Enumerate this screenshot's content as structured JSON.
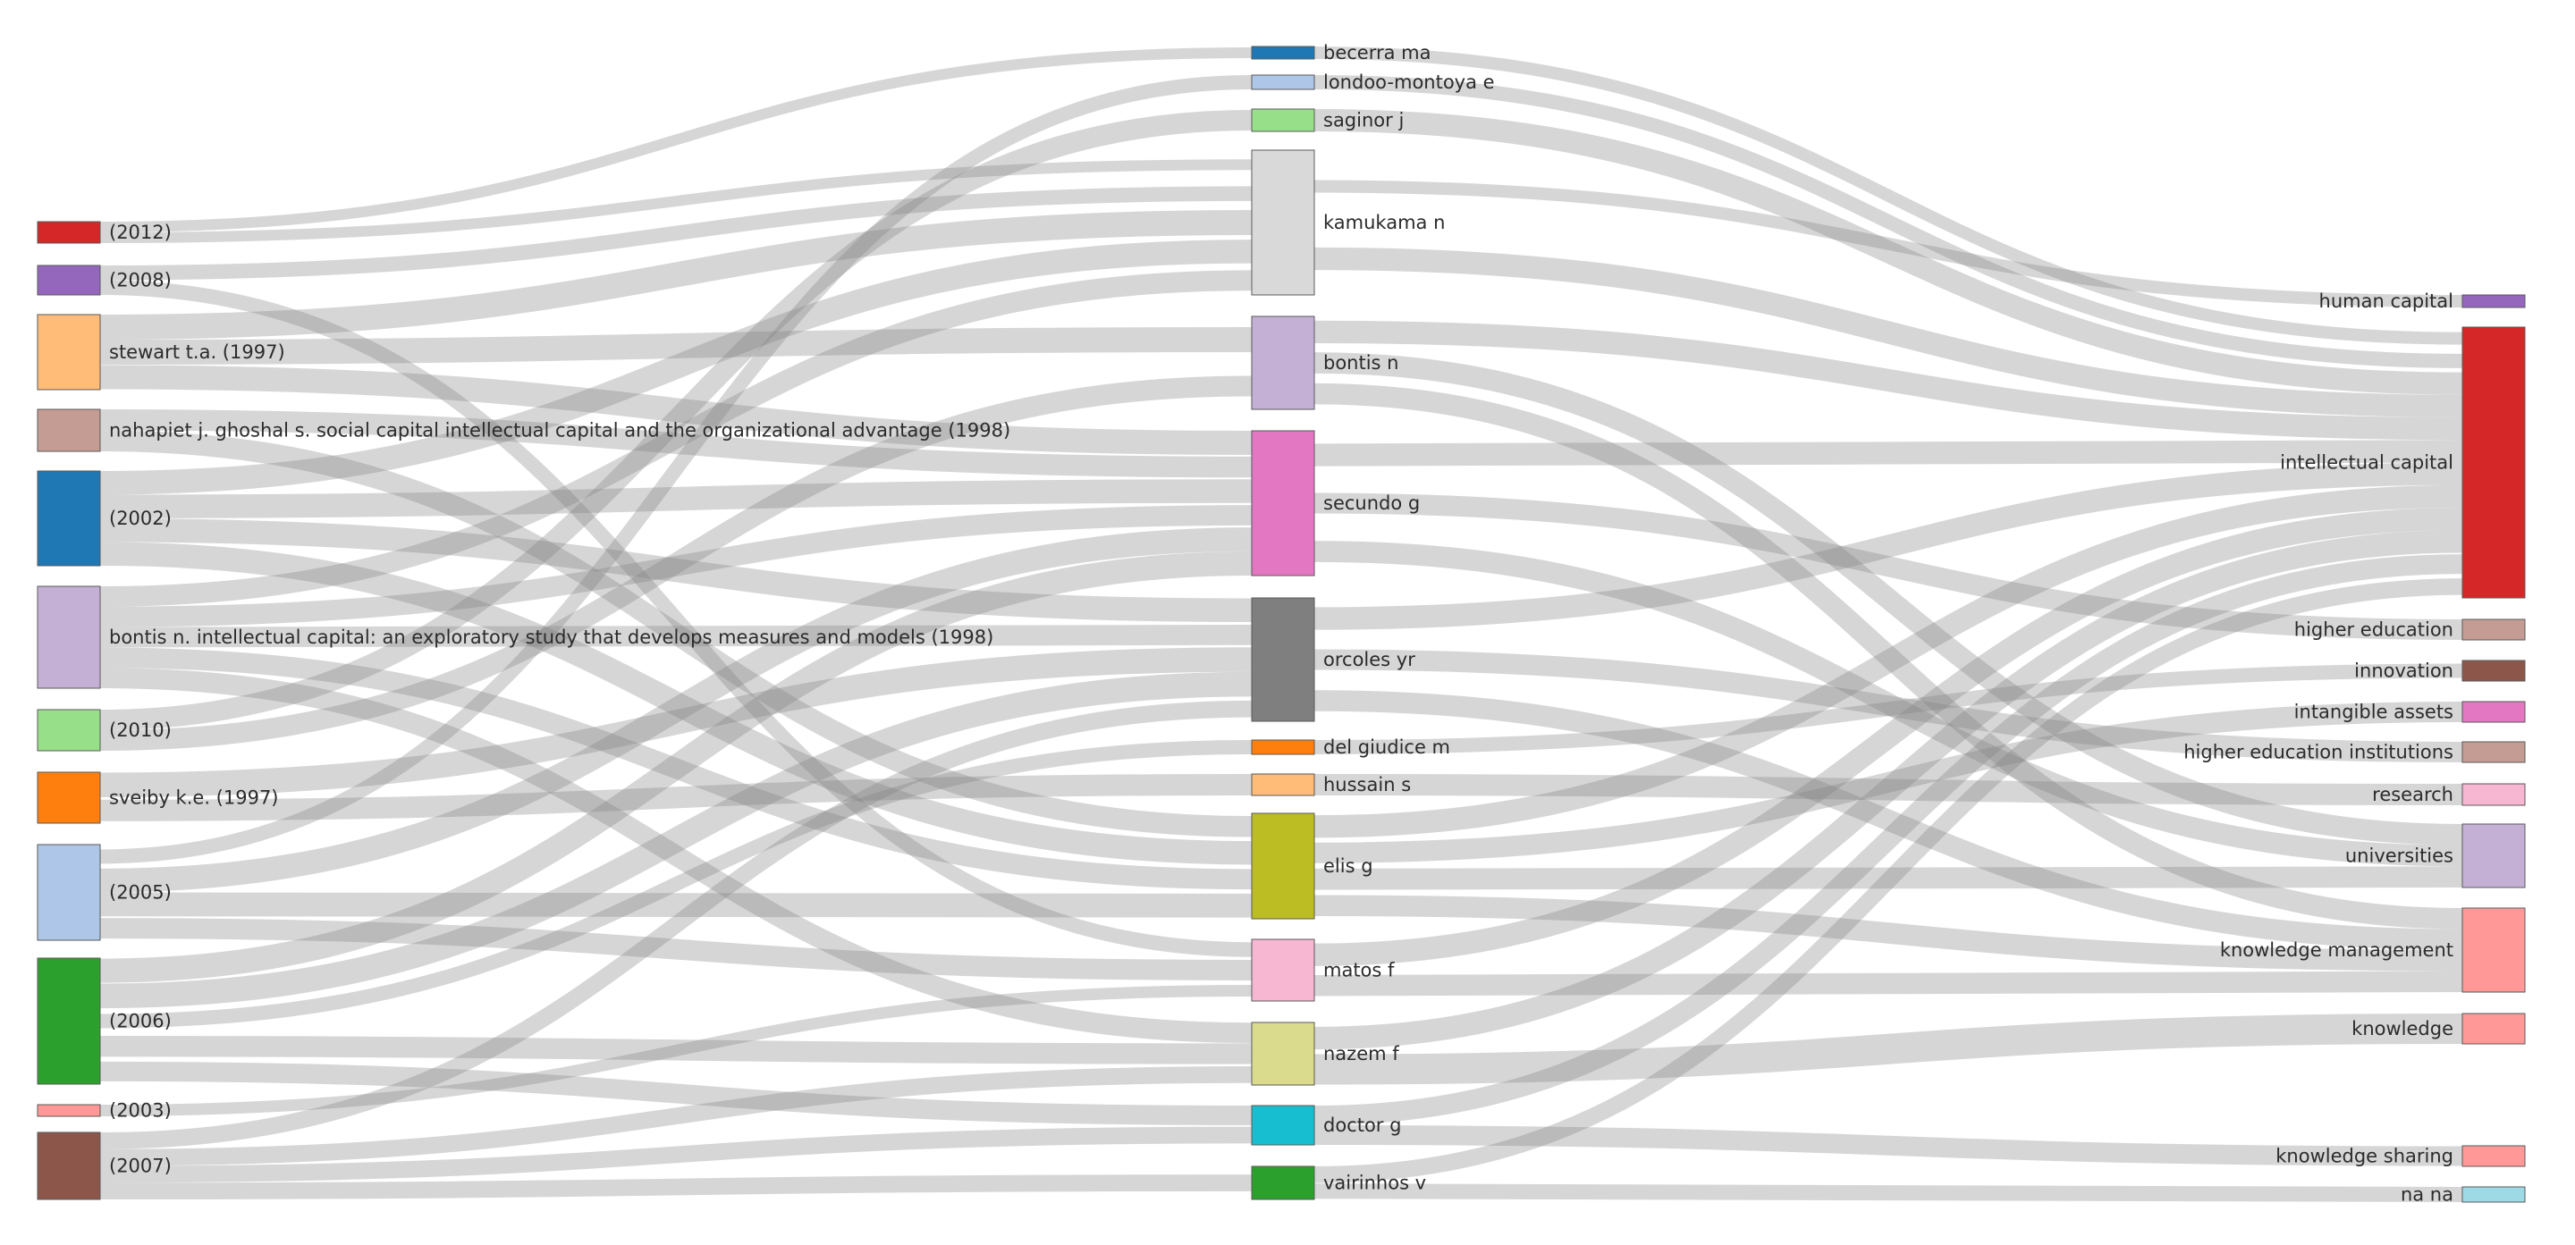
{
  "chart_data": {
    "type": "sankey",
    "columns": [
      {
        "name": "",
        "nodes": [
          {
            "id": "s2012",
            "label": "(2012)",
            "color": "#d62728"
          },
          {
            "id": "s2008",
            "label": "(2008)",
            "color": "#9467bd"
          },
          {
            "id": "stewart",
            "label": "stewart t.a. (1997)",
            "color": "#ffbb78"
          },
          {
            "id": "nahapiet",
            "label": "nahapiet j. ghoshal s. social capital intellectual capital and the organizational advantage (1998)",
            "color": "#c49c94"
          },
          {
            "id": "s2002",
            "label": "(2002)",
            "color": "#1f77b4"
          },
          {
            "id": "bontis98",
            "label": "bontis n. intellectual capital: an exploratory study that develops measures and models (1998)",
            "color": "#c5b0d5"
          },
          {
            "id": "s2010",
            "label": "(2010)",
            "color": "#98df8a"
          },
          {
            "id": "sveiby",
            "label": "sveiby k.e. (1997)",
            "color": "#ff7f0e"
          },
          {
            "id": "s2005",
            "label": "(2005)",
            "color": "#aec7e8"
          },
          {
            "id": "s2006",
            "label": "(2006)",
            "color": "#2ca02c"
          },
          {
            "id": "s2003",
            "label": "(2003)",
            "color": "#ff9896"
          },
          {
            "id": "s2007",
            "label": "(2007)",
            "color": "#8c564b"
          }
        ]
      },
      {
        "name": "",
        "nodes": [
          {
            "id": "becerra",
            "label": "becerra ma",
            "color": "#1f77b4"
          },
          {
            "id": "londoo",
            "label": "londoo-montoya e",
            "color": "#aec7e8"
          },
          {
            "id": "saginor",
            "label": "saginor j",
            "color": "#98df8a"
          },
          {
            "id": "kamukama",
            "label": "kamukama n",
            "color": "#d9d9d9"
          },
          {
            "id": "bontis",
            "label": "bontis n",
            "color": "#c5b0d5"
          },
          {
            "id": "secundo",
            "label": "secundo g",
            "color": "#e377c2"
          },
          {
            "id": "ortoles",
            "label": "orcoles yr",
            "color": "#7f7f7f"
          },
          {
            "id": "delgiudice",
            "label": "del giudice m",
            "color": "#ff7f0e"
          },
          {
            "id": "hussain",
            "label": "hussain s",
            "color": "#ffbb78"
          },
          {
            "id": "elis",
            "label": "elis g",
            "color": "#bcbd22"
          },
          {
            "id": "matos",
            "label": "matos f",
            "color": "#f7b6d2"
          },
          {
            "id": "nazem",
            "label": "nazem f",
            "color": "#dbdb8d"
          },
          {
            "id": "doctor",
            "label": "doctor g",
            "color": "#17becf"
          },
          {
            "id": "vairinhos",
            "label": "vairinhos v",
            "color": "#2ca02c"
          }
        ]
      },
      {
        "name": "",
        "nodes": [
          {
            "id": "humancap",
            "label": "human capital",
            "color": "#9467bd"
          },
          {
            "id": "intcap",
            "label": "intellectual capital",
            "color": "#d62728"
          },
          {
            "id": "highered",
            "label": "higher education",
            "color": "#c49c94"
          },
          {
            "id": "innovation",
            "label": "innovation",
            "color": "#8c564b"
          },
          {
            "id": "intangible",
            "label": "intangible assets",
            "color": "#e377c2"
          },
          {
            "id": "heinst",
            "label": "higher education institutions",
            "color": "#c49c94"
          },
          {
            "id": "research",
            "label": "research",
            "color": "#f7b6d2"
          },
          {
            "id": "universities",
            "label": "universities",
            "color": "#c5b0d5"
          },
          {
            "id": "km",
            "label": "knowledge management",
            "color": "#ff9896"
          },
          {
            "id": "knowledge",
            "label": "knowledge",
            "color": "#ff9896"
          },
          {
            "id": "ksharing",
            "label": "knowledge sharing",
            "color": "#ff9896"
          },
          {
            "id": "nana",
            "label": "na na",
            "color": "#9edae5"
          }
        ]
      }
    ],
    "links": [
      {
        "source": "s2012",
        "target": "kamukama",
        "value": 1
      },
      {
        "source": "s2012",
        "target": "becerra",
        "value": 1
      },
      {
        "source": "s2008",
        "target": "kamukama",
        "value": 1
      },
      {
        "source": "s2008",
        "target": "matos",
        "value": 1
      },
      {
        "source": "stewart",
        "target": "kamukama",
        "value": 1
      },
      {
        "source": "stewart",
        "target": "bontis",
        "value": 1
      },
      {
        "source": "stewart",
        "target": "secundo",
        "value": 1
      },
      {
        "source": "nahapiet",
        "target": "secundo",
        "value": 1
      },
      {
        "source": "nahapiet",
        "target": "elis",
        "value": 1
      },
      {
        "source": "s2002",
        "target": "kamukama",
        "value": 1
      },
      {
        "source": "s2002",
        "target": "secundo",
        "value": 1
      },
      {
        "source": "s2002",
        "target": "ortoles",
        "value": 1
      },
      {
        "source": "s2002",
        "target": "elis",
        "value": 1
      },
      {
        "source": "bontis98",
        "target": "kamukama",
        "value": 1
      },
      {
        "source": "bontis98",
        "target": "secundo",
        "value": 1
      },
      {
        "source": "bontis98",
        "target": "ortoles",
        "value": 1
      },
      {
        "source": "bontis98",
        "target": "elis",
        "value": 1
      },
      {
        "source": "bontis98",
        "target": "nazem",
        "value": 1
      },
      {
        "source": "s2010",
        "target": "saginor",
        "value": 1
      },
      {
        "source": "s2010",
        "target": "bontis",
        "value": 1
      },
      {
        "source": "sveiby",
        "target": "ortoles",
        "value": 1
      },
      {
        "source": "sveiby",
        "target": "hussain",
        "value": 1
      },
      {
        "source": "s2005",
        "target": "secundo",
        "value": 1
      },
      {
        "source": "s2005",
        "target": "elis",
        "value": 1
      },
      {
        "source": "s2005",
        "target": "matos",
        "value": 1
      },
      {
        "source": "s2005",
        "target": "londoo",
        "value": 1
      },
      {
        "source": "s2006",
        "target": "secundo",
        "value": 1
      },
      {
        "source": "s2006",
        "target": "ortoles",
        "value": 1
      },
      {
        "source": "s2006",
        "target": "nazem",
        "value": 1
      },
      {
        "source": "s2006",
        "target": "doctor",
        "value": 1
      },
      {
        "source": "s2006",
        "target": "delgiudice",
        "value": 1
      },
      {
        "source": "s2003",
        "target": "matos",
        "value": 1
      },
      {
        "source": "s2007",
        "target": "ortoles",
        "value": 1
      },
      {
        "source": "s2007",
        "target": "nazem",
        "value": 1
      },
      {
        "source": "s2007",
        "target": "doctor",
        "value": 1
      },
      {
        "source": "s2007",
        "target": "vairinhos",
        "value": 1
      },
      {
        "source": "becerra",
        "target": "intcap",
        "value": 1
      },
      {
        "source": "londoo",
        "target": "intcap",
        "value": 1
      },
      {
        "source": "saginor",
        "target": "intcap",
        "value": 1
      },
      {
        "source": "kamukama",
        "target": "intcap",
        "value": 1
      },
      {
        "source": "kamukama",
        "target": "humancap",
        "value": 1
      },
      {
        "source": "bontis",
        "target": "intcap",
        "value": 1
      },
      {
        "source": "bontis",
        "target": "universities",
        "value": 1
      },
      {
        "source": "bontis",
        "target": "km",
        "value": 1
      },
      {
        "source": "secundo",
        "target": "intcap",
        "value": 1
      },
      {
        "source": "secundo",
        "target": "highered",
        "value": 1
      },
      {
        "source": "secundo",
        "target": "universities",
        "value": 1
      },
      {
        "source": "ortoles",
        "target": "intcap",
        "value": 1
      },
      {
        "source": "ortoles",
        "target": "heinst",
        "value": 1
      },
      {
        "source": "ortoles",
        "target": "km",
        "value": 1
      },
      {
        "source": "delgiudice",
        "target": "innovation",
        "value": 1
      },
      {
        "source": "hussain",
        "target": "research",
        "value": 1
      },
      {
        "source": "elis",
        "target": "intcap",
        "value": 1
      },
      {
        "source": "elis",
        "target": "intangible",
        "value": 1
      },
      {
        "source": "elis",
        "target": "universities",
        "value": 1
      },
      {
        "source": "elis",
        "target": "km",
        "value": 1
      },
      {
        "source": "matos",
        "target": "km",
        "value": 1
      },
      {
        "source": "matos",
        "target": "intcap",
        "value": 1
      },
      {
        "source": "nazem",
        "target": "knowledge",
        "value": 1
      },
      {
        "source": "nazem",
        "target": "intcap",
        "value": 1
      },
      {
        "source": "doctor",
        "target": "ksharing",
        "value": 1
      },
      {
        "source": "doctor",
        "target": "intcap",
        "value": 1
      },
      {
        "source": "vairinhos",
        "target": "nana",
        "value": 1
      },
      {
        "source": "vairinhos",
        "target": "intcap",
        "value": 1
      }
    ]
  }
}
